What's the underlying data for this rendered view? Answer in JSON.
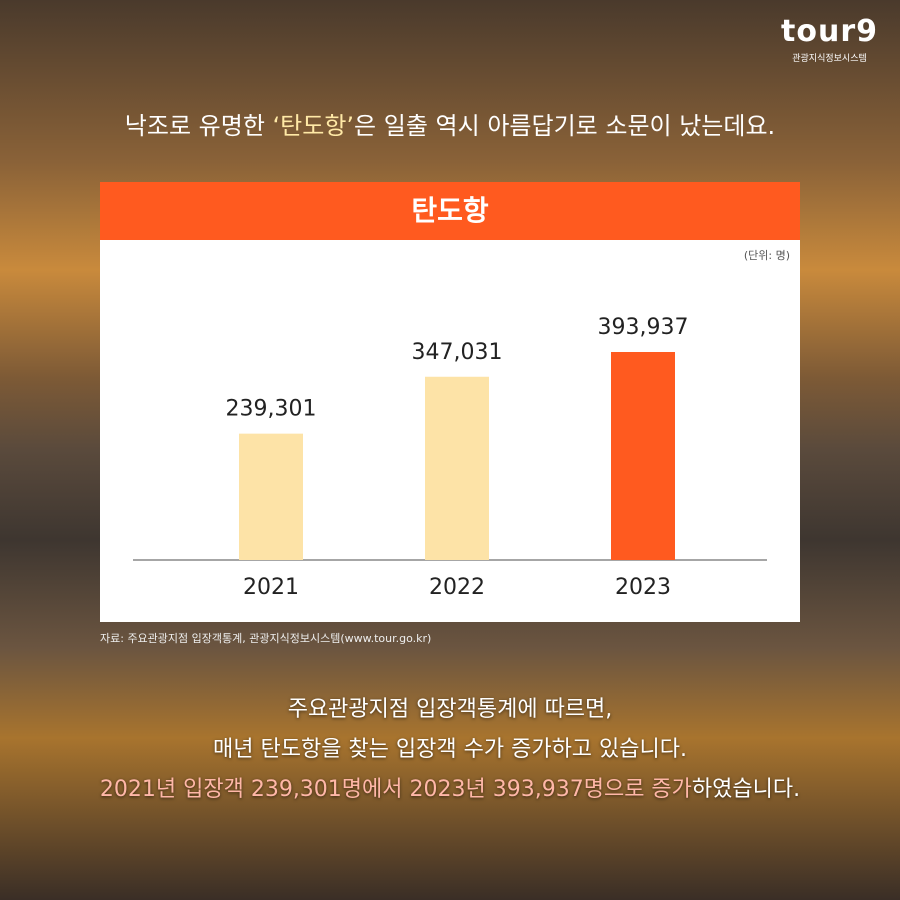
{
  "header": {
    "logo": "tour9",
    "logo_sub": "관광지식정보시스템",
    "intro": [
      {
        "text": "낙조로 유명한 ",
        "color": "#ffffff"
      },
      {
        "text": "‘탄도항’",
        "color": "#ffe9a6"
      },
      {
        "text": "은 일출 역시 아름답기로 소문이 났는데요.",
        "color": "#ffffff"
      }
    ]
  },
  "chart_data": {
    "type": "bar",
    "title": "탄도항",
    "unit": "(단위: 명)",
    "categories": [
      "2021",
      "2022",
      "2023"
    ],
    "values": [
      239301,
      347031,
      393937
    ],
    "value_labels": [
      "239,301",
      "347,031",
      "393,937"
    ],
    "colors": [
      "#fde3a7",
      "#fde3a7",
      "#ff5a1f"
    ]
  },
  "source": "자료: 주요관광지점 입장객통계, 관광지식정보시스템(www.tour.go.kr)",
  "footer": {
    "lines": [
      [
        {
          "text": "주요관광지점 입장객통계에 따르면,",
          "color": "#ffffff"
        }
      ],
      [
        {
          "text": "매년 탄도항을 찾는 입장객 수가 증가하고 있습니다.",
          "color": "#ffffff"
        }
      ],
      [
        {
          "text": "2021년 입장객 239,301명에서 2023년 393,937명으로 증가",
          "color": "#ffb7a8"
        },
        {
          "text": "하였습니다.",
          "color": "#ffffff"
        }
      ]
    ]
  }
}
